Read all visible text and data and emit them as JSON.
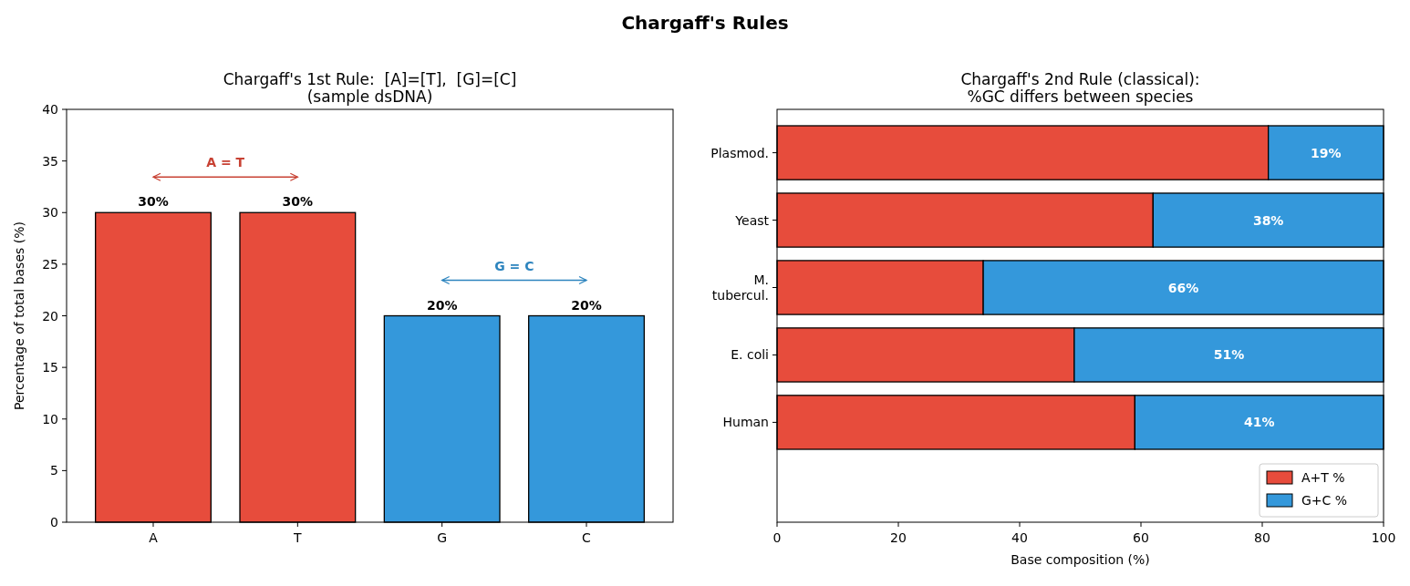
{
  "chart_data": [
    {
      "type": "other",
      "title": "Chargaff's Rules"
    },
    {
      "type": "bar",
      "title": "Chargaff's 1st Rule:  [A]=[T],  [G]=[C]\n(sample dsDNA)",
      "ylabel": "Percentage of total bases (%)",
      "categories": [
        "A",
        "T",
        "G",
        "C"
      ],
      "values": [
        30,
        30,
        20,
        20
      ],
      "colors": [
        "#e74c3c",
        "#e74c3c",
        "#3498db",
        "#3498db"
      ],
      "value_labels": [
        "30%",
        "30%",
        "20%",
        "20%"
      ],
      "ylim": [
        0,
        40
      ],
      "yticks": [
        0,
        5,
        10,
        15,
        20,
        25,
        30,
        35,
        40
      ],
      "annotations": [
        "A = T",
        "G = C"
      ]
    },
    {
      "type": "bar",
      "orientation": "horizontal",
      "stacked": true,
      "title": "Chargaff's 2nd Rule (classical):\n%GC differs between species",
      "xlabel": "Base composition (%)",
      "categories": [
        "Plasmod.",
        "Yeast",
        "M.\ntubercul.",
        "E. coli",
        "Human"
      ],
      "xlim": [
        0,
        100
      ],
      "xticks": [
        0,
        20,
        40,
        60,
        80,
        100
      ],
      "legend": "bottom right",
      "series": [
        {
          "name": "A+T %",
          "color": "#e74c3c",
          "values": [
            81,
            62,
            34,
            49,
            59
          ]
        },
        {
          "name": "G+C %",
          "color": "#3498db",
          "values": [
            19,
            38,
            66,
            51,
            41
          ],
          "value_labels": [
            "19%",
            "38%",
            "66%",
            "51%",
            "41%"
          ]
        }
      ]
    }
  ]
}
